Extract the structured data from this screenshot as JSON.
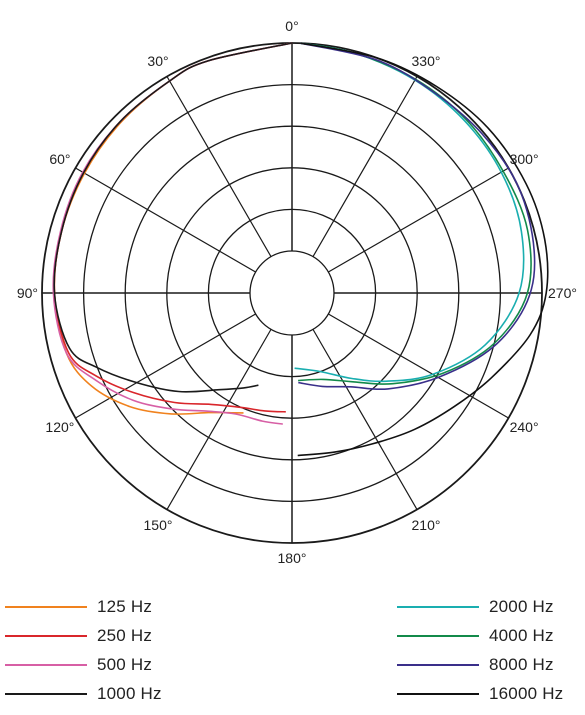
{
  "chart_data": {
    "type": "polar-line",
    "title": "",
    "angle_unit": "degrees",
    "angle_direction": "counterclockwise",
    "angle_zero": "top",
    "angle_tick_labels": [
      "0°",
      "30°",
      "60°",
      "90°",
      "120°",
      "150°",
      "180°",
      "210°",
      "240°",
      "270°",
      "300°",
      "330°"
    ],
    "angle_tick_values": [
      0,
      30,
      60,
      90,
      120,
      150,
      180,
      210,
      240,
      270,
      300,
      330
    ],
    "radial_rings": 5,
    "radial_range": [
      0,
      1
    ],
    "grid": true,
    "legend_placement": "bottom",
    "series": [
      {
        "name": "125 Hz",
        "color": "#f0821e",
        "points": [
          [
            0,
            1.0
          ],
          [
            20,
            0.985
          ],
          [
            30,
            0.975
          ],
          [
            45,
            0.96
          ],
          [
            60,
            0.95
          ],
          [
            75,
            0.945
          ],
          [
            90,
            0.94
          ],
          [
            105,
            0.92
          ],
          [
            115,
            0.86
          ],
          [
            125,
            0.75
          ],
          [
            135,
            0.62
          ],
          [
            145,
            0.5
          ],
          [
            152,
            0.45
          ],
          [
            158,
            0.42
          ]
        ]
      },
      {
        "name": "250 Hz",
        "color": "#d9262b",
        "points": [
          [
            0,
            1.0
          ],
          [
            20,
            0.985
          ],
          [
            30,
            0.975
          ],
          [
            45,
            0.965
          ],
          [
            60,
            0.955
          ],
          [
            75,
            0.945
          ],
          [
            90,
            0.94
          ],
          [
            105,
            0.91
          ],
          [
            113,
            0.82
          ],
          [
            122,
            0.7
          ],
          [
            133,
            0.57
          ],
          [
            144,
            0.46
          ],
          [
            156,
            0.4
          ],
          [
            167,
            0.38
          ],
          [
            177,
            0.37
          ]
        ]
      },
      {
        "name": "500 Hz",
        "color": "#d75fa5",
        "points": [
          [
            0,
            1.0
          ],
          [
            20,
            0.985
          ],
          [
            30,
            0.975
          ],
          [
            45,
            0.965
          ],
          [
            60,
            0.96
          ],
          [
            75,
            0.95
          ],
          [
            90,
            0.945
          ],
          [
            105,
            0.92
          ],
          [
            114,
            0.83
          ],
          [
            124,
            0.72
          ],
          [
            134,
            0.6
          ],
          [
            144,
            0.5
          ],
          [
            155,
            0.44
          ],
          [
            167,
            0.43
          ],
          [
            176,
            0.43
          ]
        ]
      },
      {
        "name": "1000 Hz",
        "color": "#1a1a1a",
        "points": [
          [
            0,
            1.0
          ],
          [
            20,
            0.985
          ],
          [
            30,
            0.975
          ],
          [
            45,
            0.965
          ],
          [
            60,
            0.955
          ],
          [
            75,
            0.945
          ],
          [
            90,
            0.94
          ],
          [
            104,
            0.9
          ],
          [
            111,
            0.8
          ],
          [
            120,
            0.66
          ],
          [
            131,
            0.52
          ],
          [
            143,
            0.38
          ],
          [
            153,
            0.31
          ],
          [
            160,
            0.27
          ]
        ]
      },
      {
        "name": "2000 Hz",
        "color": "#1aaeb0",
        "points": [
          [
            182,
            0.16
          ],
          [
            200,
            0.2
          ],
          [
            215,
            0.3
          ],
          [
            227,
            0.42
          ],
          [
            240,
            0.58
          ],
          [
            255,
            0.76
          ],
          [
            270,
            0.89
          ],
          [
            285,
            0.94
          ],
          [
            300,
            0.96
          ],
          [
            315,
            0.97
          ],
          [
            330,
            0.98
          ],
          [
            345,
            0.99
          ],
          [
            358,
            1.0
          ]
        ]
      },
      {
        "name": "4000 Hz",
        "color": "#138a4a",
        "points": [
          [
            184,
            0.22
          ],
          [
            200,
            0.24
          ],
          [
            215,
            0.32
          ],
          [
            228,
            0.45
          ],
          [
            242,
            0.62
          ],
          [
            256,
            0.8
          ],
          [
            270,
            0.93
          ],
          [
            285,
            0.97
          ],
          [
            300,
            0.97
          ],
          [
            315,
            0.98
          ],
          [
            330,
            0.985
          ],
          [
            345,
            0.99
          ],
          [
            358,
            1.0
          ]
        ]
      },
      {
        "name": "8000 Hz",
        "color": "#3a2f8a",
        "points": [
          [
            184,
            0.23
          ],
          [
            198,
            0.27
          ],
          [
            212,
            0.33
          ],
          [
            225,
            0.45
          ],
          [
            240,
            0.61
          ],
          [
            255,
            0.8
          ],
          [
            268,
            0.93
          ],
          [
            280,
            0.98
          ],
          [
            295,
            1.0
          ],
          [
            310,
            0.99
          ],
          [
            325,
            0.98
          ],
          [
            340,
            0.99
          ],
          [
            358,
            1.0
          ]
        ]
      },
      {
        "name": "16000 Hz",
        "color": "#111111",
        "points": [
          [
            182,
            0.58
          ],
          [
            195,
            0.59
          ],
          [
            208,
            0.62
          ],
          [
            222,
            0.68
          ],
          [
            235,
            0.75
          ],
          [
            247,
            0.84
          ],
          [
            260,
            0.96
          ],
          [
            270,
            1.02
          ],
          [
            282,
            1.04
          ],
          [
            295,
            1.04
          ],
          [
            310,
            1.03
          ],
          [
            325,
            1.01
          ],
          [
            340,
            1.0
          ],
          [
            358,
            1.0
          ]
        ]
      }
    ]
  }
}
